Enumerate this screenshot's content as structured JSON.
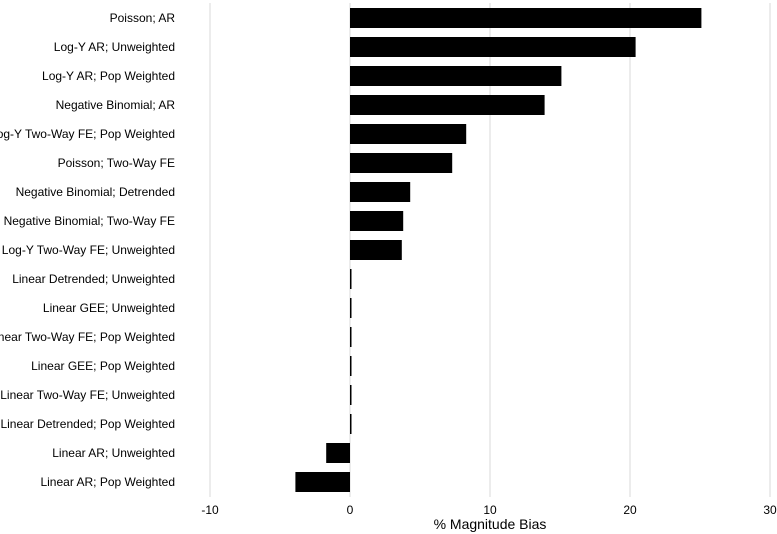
{
  "chart_data": {
    "type": "bar",
    "orientation": "horizontal",
    "categories": [
      "Poisson; AR",
      "Log-Y AR; Unweighted",
      "Log-Y AR; Pop Weighted",
      "Negative Binomial; AR",
      "Log-Y Two-Way FE; Pop Weighted",
      "Poisson; Two-Way FE",
      "Negative Binomial; Detrended",
      "Negative Binomial; Two-Way FE",
      "Log-Y Two-Way FE; Unweighted",
      "Linear Detrended; Unweighted",
      "Linear GEE; Unweighted",
      "Linear Two-Way FE; Pop Weighted",
      "Linear GEE; Pop Weighted",
      "Linear Two-Way FE; Unweighted",
      "Linear Detrended; Pop Weighted",
      "Linear AR; Unweighted",
      "Linear AR; Pop Weighted"
    ],
    "values": [
      25.1,
      20.4,
      15.1,
      13.9,
      8.3,
      7.3,
      4.3,
      3.8,
      3.7,
      0.1,
      0.1,
      0.1,
      0.1,
      0.1,
      0.1,
      -1.7,
      -3.9
    ],
    "xlabel": "% Magnitude Bias",
    "ylabel": "",
    "xlim": [
      -10,
      30
    ],
    "xticks": [
      -10,
      0,
      10,
      20,
      30
    ],
    "grid": true,
    "bar_color": "#000000",
    "grid_color": "#d9d9d9"
  }
}
